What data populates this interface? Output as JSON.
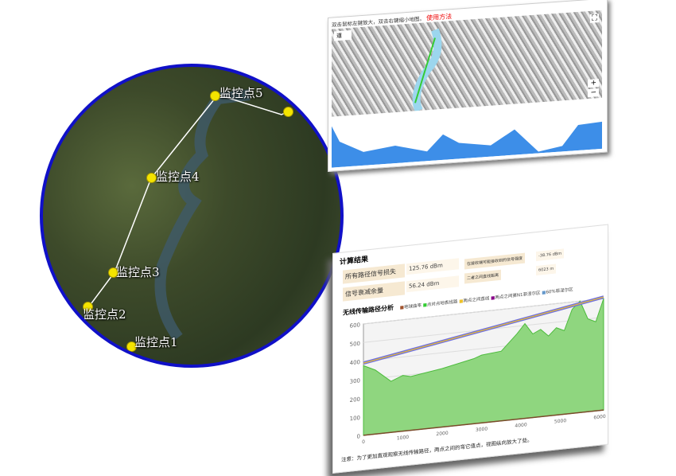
{
  "satellite_view": {
    "points": [
      "监控点1",
      "监控点2",
      "监控点3",
      "监控点4",
      "监控点5"
    ],
    "border_color": "#1010c8",
    "pin_color": "#f4e400"
  },
  "map_panel": {
    "instructions": "双击鼠标左键放大，双击右键缩小地图。",
    "help_link": "使用方法",
    "search_value": "道",
    "zoom_in": "+",
    "zoom_out": "−",
    "profile_button": "使用方法"
  },
  "results": {
    "title": "计算结果",
    "rows": [
      {
        "label": "所有路径信号损失",
        "value": "125.76 dBm"
      },
      {
        "label": "信号衰减余量",
        "value": "56.24 dBm"
      }
    ],
    "extra": [
      {
        "label": "在接收端可能接收到的信号强度",
        "value": "-38.76 dBm"
      },
      {
        "label": "二者之间直线距离",
        "value": "6023 m"
      }
    ],
    "chart": {
      "title": "无线传输路径分析",
      "legend": [
        "地球曲率",
        "点对点地表线路",
        "两点之间直线",
        "两点之间第N1菲涅尔区",
        "60%菲涅尔区"
      ],
      "note": "注意：为了更加直观观察无线传输路径，两点之间的弯它值点，视图纵向放大了些。"
    }
  },
  "chart_data": {
    "type": "area",
    "xlabel": "",
    "ylabel": "",
    "xlim": [
      0,
      6100
    ],
    "ylim": [
      0,
      600
    ],
    "xticks": [
      0,
      1000,
      2000,
      3000,
      4000,
      5000,
      6000
    ],
    "yticks": [
      0,
      100,
      200,
      300,
      400,
      500,
      600
    ],
    "series": [
      {
        "name": "点对点地表线路",
        "x": [
          0,
          300,
          700,
          1000,
          1200,
          2000,
          2800,
          3000,
          3500,
          3900,
          4100,
          4300,
          4500,
          4700,
          4900,
          5100,
          5300,
          5500,
          5700,
          5900,
          6100
        ],
        "y": [
          375,
          345,
          275,
          300,
          290,
          315,
          350,
          365,
          375,
          460,
          510,
          450,
          470,
          430,
          470,
          450,
          560,
          640,
          500,
          480,
          620
        ]
      },
      {
        "name": "两点之间直线",
        "x": [
          0,
          6100
        ],
        "y": [
          380,
          640
        ]
      }
    ]
  }
}
